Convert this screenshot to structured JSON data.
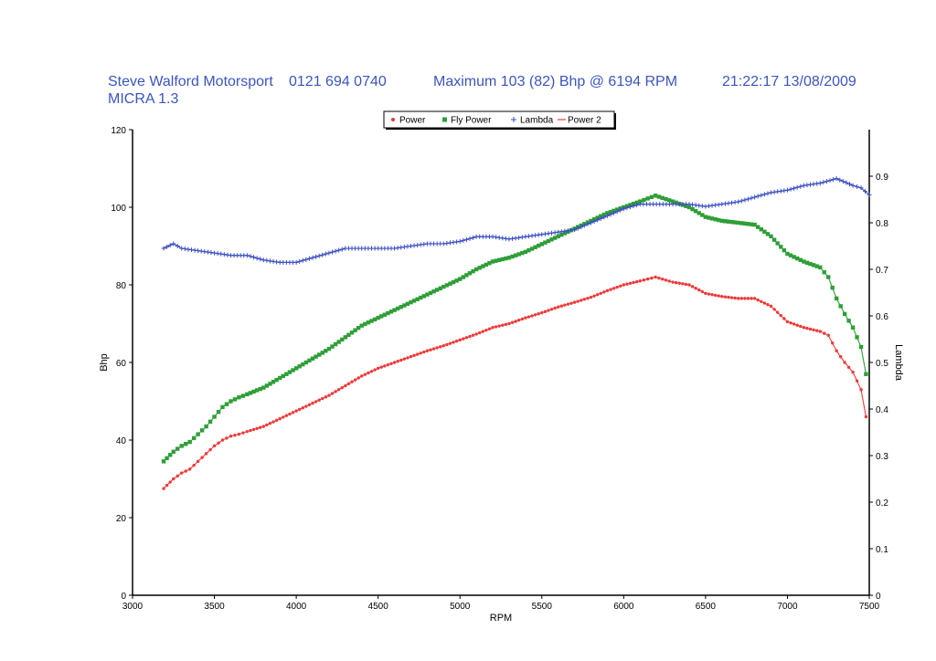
{
  "header": {
    "company": "Steve Walford Motorsport",
    "phone": "0121 694 0740",
    "maximum": "Maximum 103 (82) Bhp @ 6194 RPM",
    "datetime": "21:22:17 13/08/2009",
    "vehicle": "MICRA 1.3"
  },
  "chart_data": {
    "type": "line",
    "xlabel": "RPM",
    "ylabel": "Bhp",
    "y2label": "Lambda",
    "xlim": [
      3000,
      7500
    ],
    "ylim": [
      0,
      120
    ],
    "y2lim": [
      0,
      1.0
    ],
    "x_ticks": [
      3000,
      3500,
      4000,
      4500,
      5000,
      5500,
      6000,
      6500,
      7000,
      7500
    ],
    "y_ticks": [
      0,
      20,
      40,
      60,
      80,
      100,
      120
    ],
    "y2_ticks": [
      0,
      0.1,
      0.2,
      0.3,
      0.4,
      0.5,
      0.6,
      0.7,
      0.8,
      0.9
    ],
    "legend_position": "top-center",
    "legend": [
      "Power",
      "Fly Power",
      "Lambda",
      "Power 2"
    ],
    "colors": {
      "power": "#ee3b3b",
      "fly_power": "#2e9e36",
      "lambda": "#3a4fc4",
      "power2": "#ee3b3b"
    },
    "series": [
      {
        "name": "Power",
        "axis": "left",
        "marker": "dot",
        "color": "#ee3b3b",
        "points": [
          [
            3190,
            27.5
          ],
          [
            3250,
            30
          ],
          [
            3300,
            31.5
          ],
          [
            3350,
            32.5
          ],
          [
            3400,
            34.5
          ],
          [
            3450,
            36.5
          ],
          [
            3500,
            38.5
          ],
          [
            3550,
            40
          ],
          [
            3600,
            41
          ],
          [
            3650,
            41.5
          ],
          [
            3700,
            42.2
          ],
          [
            3800,
            43.5
          ],
          [
            3900,
            45.5
          ],
          [
            4000,
            47.5
          ],
          [
            4100,
            49.5
          ],
          [
            4200,
            51.5
          ],
          [
            4300,
            54
          ],
          [
            4400,
            56.5
          ],
          [
            4500,
            58.5
          ],
          [
            4600,
            60
          ],
          [
            4700,
            61.5
          ],
          [
            4800,
            63
          ],
          [
            4900,
            64.3
          ],
          [
            5000,
            65.8
          ],
          [
            5100,
            67.3
          ],
          [
            5200,
            69
          ],
          [
            5300,
            70
          ],
          [
            5400,
            71.5
          ],
          [
            5500,
            72.8
          ],
          [
            5600,
            74.3
          ],
          [
            5700,
            75.5
          ],
          [
            5800,
            76.8
          ],
          [
            5900,
            78.5
          ],
          [
            6000,
            80
          ],
          [
            6100,
            81
          ],
          [
            6194,
            82
          ],
          [
            6300,
            80.7
          ],
          [
            6400,
            80
          ],
          [
            6500,
            77.8
          ],
          [
            6600,
            77
          ],
          [
            6700,
            76.5
          ],
          [
            6800,
            76.5
          ],
          [
            6900,
            74.5
          ],
          [
            7000,
            70.5
          ],
          [
            7100,
            69
          ],
          [
            7200,
            68
          ],
          [
            7250,
            67
          ],
          [
            7300,
            63
          ],
          [
            7350,
            60
          ],
          [
            7400,
            57.5
          ],
          [
            7450,
            53
          ],
          [
            7480,
            46
          ]
        ]
      },
      {
        "name": "Fly Power",
        "axis": "left",
        "marker": "square",
        "color": "#2e9e36",
        "points": [
          [
            3190,
            34.5
          ],
          [
            3250,
            37
          ],
          [
            3300,
            38.5
          ],
          [
            3350,
            39.5
          ],
          [
            3400,
            41.5
          ],
          [
            3450,
            43.5
          ],
          [
            3500,
            46
          ],
          [
            3550,
            48.5
          ],
          [
            3600,
            50
          ],
          [
            3650,
            51
          ],
          [
            3700,
            51.8
          ],
          [
            3800,
            53.5
          ],
          [
            3900,
            56
          ],
          [
            4000,
            58.5
          ],
          [
            4100,
            61
          ],
          [
            4200,
            63.5
          ],
          [
            4300,
            66.5
          ],
          [
            4400,
            69.5
          ],
          [
            4500,
            71.5
          ],
          [
            4600,
            73.5
          ],
          [
            4700,
            75.5
          ],
          [
            4800,
            77.5
          ],
          [
            4900,
            79.5
          ],
          [
            5000,
            81.5
          ],
          [
            5100,
            84
          ],
          [
            5200,
            86
          ],
          [
            5300,
            87
          ],
          [
            5400,
            88.5
          ],
          [
            5500,
            90.5
          ],
          [
            5600,
            92.5
          ],
          [
            5700,
            94.5
          ],
          [
            5800,
            96.5
          ],
          [
            5900,
            98.5
          ],
          [
            6000,
            100
          ],
          [
            6100,
            101.5
          ],
          [
            6194,
            103
          ],
          [
            6300,
            101.5
          ],
          [
            6400,
            100
          ],
          [
            6500,
            97.5
          ],
          [
            6600,
            96.5
          ],
          [
            6700,
            96
          ],
          [
            6800,
            95.5
          ],
          [
            6900,
            92.5
          ],
          [
            7000,
            88
          ],
          [
            7100,
            86
          ],
          [
            7200,
            84.5
          ],
          [
            7250,
            82
          ],
          [
            7300,
            76.5
          ],
          [
            7350,
            72.5
          ],
          [
            7400,
            69
          ],
          [
            7450,
            64
          ],
          [
            7480,
            57
          ]
        ]
      },
      {
        "name": "Lambda",
        "axis": "right",
        "marker": "plus",
        "color": "#3a4fc4",
        "points": [
          [
            3190,
            0.745
          ],
          [
            3250,
            0.755
          ],
          [
            3300,
            0.745
          ],
          [
            3400,
            0.74
          ],
          [
            3500,
            0.735
          ],
          [
            3600,
            0.73
          ],
          [
            3700,
            0.73
          ],
          [
            3800,
            0.72
          ],
          [
            3900,
            0.715
          ],
          [
            4000,
            0.715
          ],
          [
            4100,
            0.725
          ],
          [
            4200,
            0.735
          ],
          [
            4300,
            0.745
          ],
          [
            4400,
            0.745
          ],
          [
            4500,
            0.745
          ],
          [
            4600,
            0.745
          ],
          [
            4700,
            0.75
          ],
          [
            4800,
            0.755
          ],
          [
            4900,
            0.755
          ],
          [
            5000,
            0.76
          ],
          [
            5100,
            0.77
          ],
          [
            5200,
            0.77
          ],
          [
            5300,
            0.765
          ],
          [
            5400,
            0.77
          ],
          [
            5500,
            0.775
          ],
          [
            5600,
            0.78
          ],
          [
            5700,
            0.785
          ],
          [
            5800,
            0.8
          ],
          [
            5900,
            0.815
          ],
          [
            6000,
            0.83
          ],
          [
            6100,
            0.84
          ],
          [
            6200,
            0.84
          ],
          [
            6300,
            0.84
          ],
          [
            6400,
            0.84
          ],
          [
            6500,
            0.835
          ],
          [
            6600,
            0.84
          ],
          [
            6700,
            0.845
          ],
          [
            6800,
            0.855
          ],
          [
            6900,
            0.865
          ],
          [
            7000,
            0.87
          ],
          [
            7100,
            0.88
          ],
          [
            7200,
            0.885
          ],
          [
            7300,
            0.895
          ],
          [
            7400,
            0.88
          ],
          [
            7450,
            0.875
          ],
          [
            7500,
            0.86
          ]
        ]
      }
    ]
  }
}
